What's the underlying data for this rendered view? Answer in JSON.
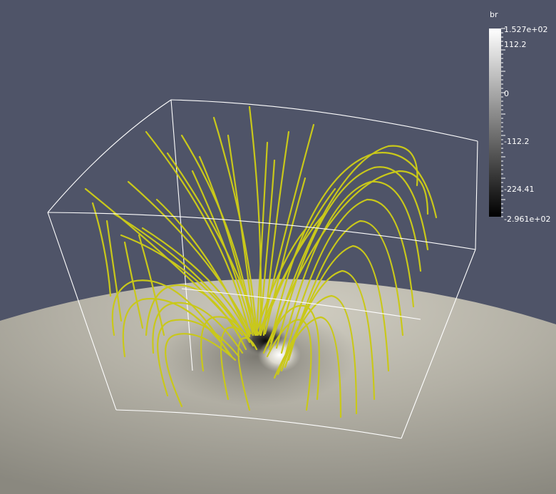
{
  "viewport": {
    "background_color": "#4f5468",
    "sphere_color": "#a8a69c",
    "fieldline_color": "#c9c81a",
    "box_color": "#ffffff"
  },
  "colorbar": {
    "title": "br",
    "max_label": "1.527e+02",
    "min_label": "-2.961e+02",
    "tick_labels": [
      "112.2",
      "0",
      "-112.2",
      "-224.41"
    ],
    "range": [
      -296.1,
      152.7
    ],
    "colormap": "grayscale"
  }
}
